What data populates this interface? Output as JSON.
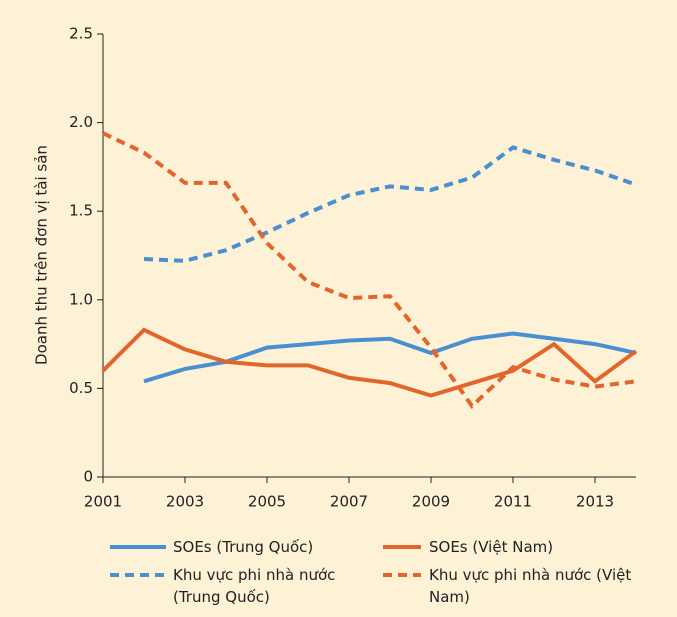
{
  "chart_data": {
    "type": "line",
    "ylabel": "Doanh thu trên đơn vị tài sản",
    "x": [
      2001,
      2002,
      2003,
      2004,
      2005,
      2006,
      2007,
      2008,
      2009,
      2010,
      2011,
      2012,
      2013,
      2014
    ],
    "xlim": [
      2001,
      2014
    ],
    "xticks": [
      2001,
      2003,
      2005,
      2007,
      2009,
      2011,
      2013
    ],
    "ylim": [
      0,
      2.5
    ],
    "yticks": [
      0,
      0.5,
      {
        "value": 1,
        "label": "1.0"
      },
      1.5,
      {
        "value": 2,
        "label": "2.0"
      },
      2.5
    ],
    "series": [
      {
        "name": "SOEs (Trung Quốc)",
        "color": "#4a8fd0",
        "dashed": false,
        "values": [
          null,
          0.54,
          0.61,
          0.65,
          0.73,
          0.75,
          0.77,
          0.78,
          0.7,
          0.78,
          0.81,
          0.78,
          0.75,
          0.7
        ]
      },
      {
        "name": "SOEs (Việt Nam)",
        "color": "#e2662b",
        "dashed": false,
        "values": [
          0.6,
          0.83,
          0.72,
          0.65,
          0.63,
          0.63,
          0.56,
          0.53,
          0.46,
          0.53,
          0.6,
          0.75,
          0.54,
          0.71
        ]
      },
      {
        "name": "Khu vực phi nhà nước (Trung Quốc)",
        "color": "#4a8fd0",
        "dashed": true,
        "values": [
          null,
          1.23,
          1.22,
          1.28,
          1.38,
          1.49,
          1.59,
          1.64,
          1.62,
          1.69,
          1.86,
          1.79,
          1.73,
          1.65
        ]
      },
      {
        "name": "Khu vực phi nhà nước (Việt Nam)",
        "color": "#e2662b",
        "dashed": true,
        "values": [
          1.94,
          1.83,
          1.66,
          1.66,
          1.32,
          1.1,
          1.01,
          1.02,
          0.73,
          0.4,
          0.62,
          0.55,
          0.51,
          0.54
        ]
      }
    ]
  }
}
